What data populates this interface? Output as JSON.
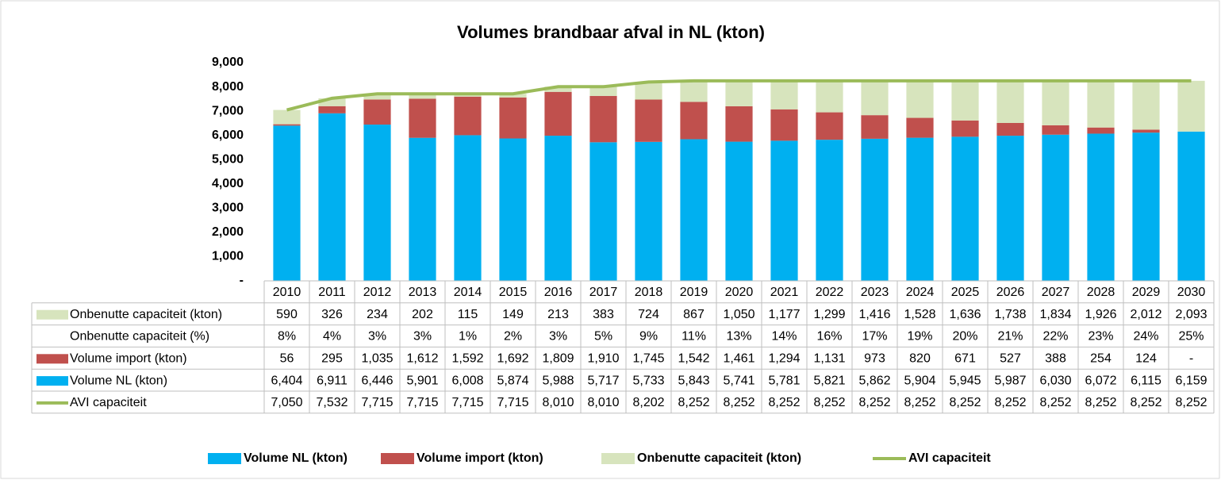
{
  "chart_data": {
    "type": "bar",
    "stacked": true,
    "title": "Volumes brandbaar afval in NL (kton)",
    "categories": [
      "2010",
      "2011",
      "2012",
      "2013",
      "2014",
      "2015",
      "2016",
      "2017",
      "2018",
      "2019",
      "2020",
      "2021",
      "2022",
      "2023",
      "2024",
      "2025",
      "2026",
      "2027",
      "2028",
      "2029",
      "2030"
    ],
    "ylim": [
      0,
      9000
    ],
    "yticks": [
      {
        "value": 0,
        "label": "-"
      },
      {
        "value": 1000,
        "label": "1,000"
      },
      {
        "value": 2000,
        "label": "2,000"
      },
      {
        "value": 3000,
        "label": "3,000"
      },
      {
        "value": 4000,
        "label": "4,000"
      },
      {
        "value": 5000,
        "label": "5,000"
      },
      {
        "value": 6000,
        "label": "6,000"
      },
      {
        "value": 7000,
        "label": "7,000"
      },
      {
        "value": 8000,
        "label": "8,000"
      },
      {
        "value": 9000,
        "label": "9,000"
      }
    ],
    "grid": false,
    "legend": "bottom",
    "series": [
      {
        "name": "Volume NL (kton)",
        "type": "bar",
        "color": "#00b0f0",
        "values": [
          6404,
          6911,
          6446,
          5901,
          6008,
          5874,
          5988,
          5717,
          5733,
          5843,
          5741,
          5781,
          5821,
          5862,
          5904,
          5945,
          5987,
          6030,
          6072,
          6115,
          6159
        ],
        "value_labels": [
          "6,404",
          "6,911",
          "6,446",
          "5,901",
          "6,008",
          "5,874",
          "5,988",
          "5,717",
          "5,733",
          "5,843",
          "5,741",
          "5,781",
          "5,821",
          "5,862",
          "5,904",
          "5,945",
          "5,987",
          "6,030",
          "6,072",
          "6,115",
          "6,159"
        ]
      },
      {
        "name": "Volume import (kton)",
        "type": "bar",
        "color": "#c0504d",
        "values": [
          56,
          295,
          1035,
          1612,
          1592,
          1692,
          1809,
          1910,
          1745,
          1542,
          1461,
          1294,
          1131,
          973,
          820,
          671,
          527,
          388,
          254,
          124,
          0
        ],
        "value_labels": [
          "56",
          "295",
          "1,035",
          "1,612",
          "1,592",
          "1,692",
          "1,809",
          "1,910",
          "1,745",
          "1,542",
          "1,461",
          "1,294",
          "1,131",
          "973",
          "820",
          "671",
          "527",
          "388",
          "254",
          "124",
          "-"
        ]
      },
      {
        "name": "Onbenutte capaciteit (kton)",
        "type": "bar",
        "color": "#d7e4bd",
        "values": [
          590,
          326,
          234,
          202,
          115,
          149,
          213,
          383,
          724,
          867,
          1050,
          1177,
          1299,
          1416,
          1528,
          1636,
          1738,
          1834,
          1926,
          2012,
          2093
        ],
        "value_labels": [
          "590",
          "326",
          "234",
          "202",
          "115",
          "149",
          "213",
          "383",
          "724",
          "867",
          "1,050",
          "1,177",
          "1,299",
          "1,416",
          "1,528",
          "1,636",
          "1,738",
          "1,834",
          "1,926",
          "2,012",
          "2,093"
        ]
      },
      {
        "name": "AVI capaciteit",
        "type": "line",
        "color": "#9bbb59",
        "values": [
          7050,
          7532,
          7715,
          7715,
          7715,
          7715,
          8010,
          8010,
          8202,
          8252,
          8252,
          8252,
          8252,
          8252,
          8252,
          8252,
          8252,
          8252,
          8252,
          8252,
          8252
        ],
        "value_labels": [
          "7,050",
          "7,532",
          "7,715",
          "7,715",
          "7,715",
          "7,715",
          "8,010",
          "8,010",
          "8,202",
          "8,252",
          "8,252",
          "8,252",
          "8,252",
          "8,252",
          "8,252",
          "8,252",
          "8,252",
          "8,252",
          "8,252",
          "8,252",
          "8,252"
        ]
      }
    ],
    "unused_share": {
      "name": "Onbenutte capaciteit (%)",
      "values": [
        8,
        4,
        3,
        3,
        1,
        2,
        3,
        5,
        9,
        11,
        13,
        14,
        16,
        17,
        19,
        20,
        21,
        22,
        23,
        24,
        25
      ],
      "value_labels": [
        "8%",
        "4%",
        "3%",
        "3%",
        "1%",
        "2%",
        "3%",
        "5%",
        "9%",
        "11%",
        "13%",
        "14%",
        "16%",
        "17%",
        "19%",
        "20%",
        "21%",
        "22%",
        "23%",
        "24%",
        "25%"
      ]
    }
  }
}
